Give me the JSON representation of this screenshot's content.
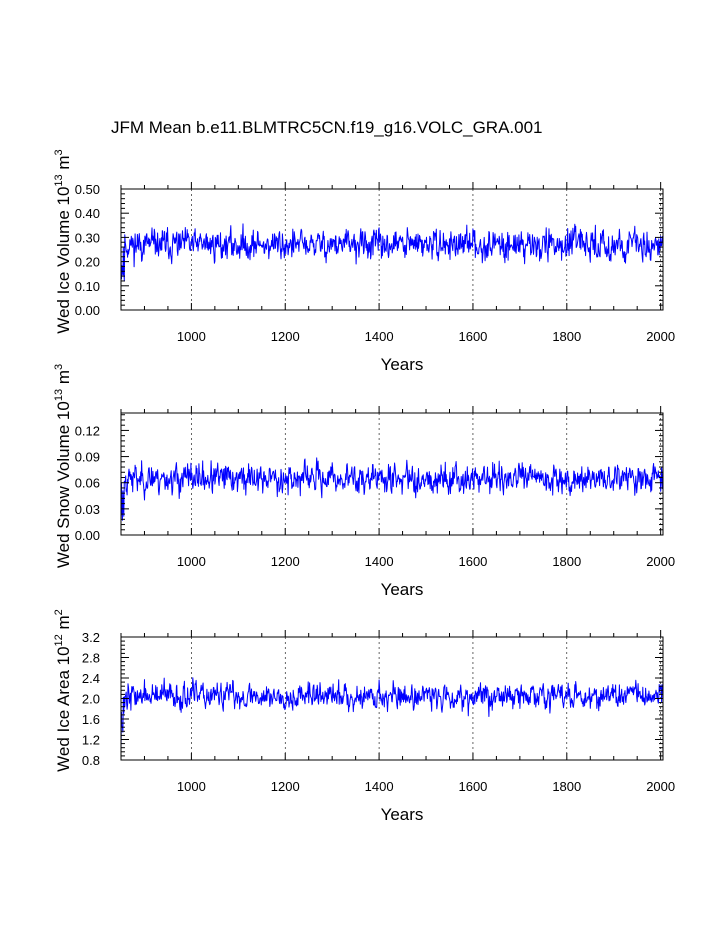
{
  "figure_title": "JFM Mean b.e11.BLMTRC5CN.f19_g16.VOLC_GRA.001",
  "line_color": "#0000ff",
  "chart_data": [
    {
      "type": "line",
      "title": "",
      "ylabel": {
        "prefix": "Wed Ice Volume 10",
        "exp": "13",
        "unit": " m",
        "unit_exp": "3"
      },
      "xlabel": "Years",
      "xlim": [
        850,
        2005
      ],
      "ylim": [
        0.0,
        0.5
      ],
      "xticks": [
        1000,
        1200,
        1400,
        1600,
        1800,
        2000
      ],
      "xtick_labels": [
        "1000",
        "1200",
        "1400",
        "1600",
        "1800",
        "2000"
      ],
      "yticks": [
        0.0,
        0.1,
        0.2,
        0.3,
        0.4,
        0.5
      ],
      "ytick_labels": [
        "0.00",
        "0.10",
        "0.20",
        "0.30",
        "0.40",
        "0.50"
      ],
      "grid_x": true,
      "series": [
        {
          "name": "Wed Ice Volume",
          "base": 0.27,
          "amp": 0.11,
          "start_min": 0.09,
          "seed": 11
        }
      ]
    },
    {
      "type": "line",
      "title": "",
      "ylabel": {
        "prefix": "Wed Snow Volume 10",
        "exp": "13",
        "unit": " m",
        "unit_exp": "3"
      },
      "xlabel": "Years",
      "xlim": [
        850,
        2005
      ],
      "ylim": [
        0.0,
        0.14
      ],
      "xticks": [
        1000,
        1200,
        1400,
        1600,
        1800,
        2000
      ],
      "xtick_labels": [
        "1000",
        "1200",
        "1400",
        "1600",
        "1800",
        "2000"
      ],
      "yticks": [
        0.0,
        0.03,
        0.06,
        0.09,
        0.12
      ],
      "ytick_labels": [
        "0.00",
        "0.03",
        "0.06",
        "0.09",
        "0.12"
      ],
      "grid_x": true,
      "series": [
        {
          "name": "Wed Snow Volume",
          "base": 0.065,
          "amp": 0.03,
          "start_min": 0.015,
          "seed": 23
        }
      ]
    },
    {
      "type": "line",
      "title": "",
      "ylabel": {
        "prefix": "Wed Ice Area 10",
        "exp": "12",
        "unit": " m",
        "unit_exp": "2"
      },
      "xlabel": "Years",
      "xlim": [
        850,
        2005
      ],
      "ylim": [
        0.8,
        3.2
      ],
      "xticks": [
        1000,
        1200,
        1400,
        1600,
        1800,
        2000
      ],
      "xtick_labels": [
        "1000",
        "1200",
        "1400",
        "1600",
        "1800",
        "2000"
      ],
      "yticks": [
        0.8,
        1.2,
        1.6,
        2.0,
        2.4,
        2.8,
        3.2
      ],
      "ytick_labels": [
        "0.8",
        "1.2",
        "1.6",
        "2.0",
        "2.4",
        "2.8",
        "3.2"
      ],
      "grid_x": true,
      "series": [
        {
          "name": "Wed Ice Area",
          "base": 2.05,
          "amp": 0.45,
          "start_min": 0.95,
          "seed": 37
        }
      ]
    }
  ]
}
